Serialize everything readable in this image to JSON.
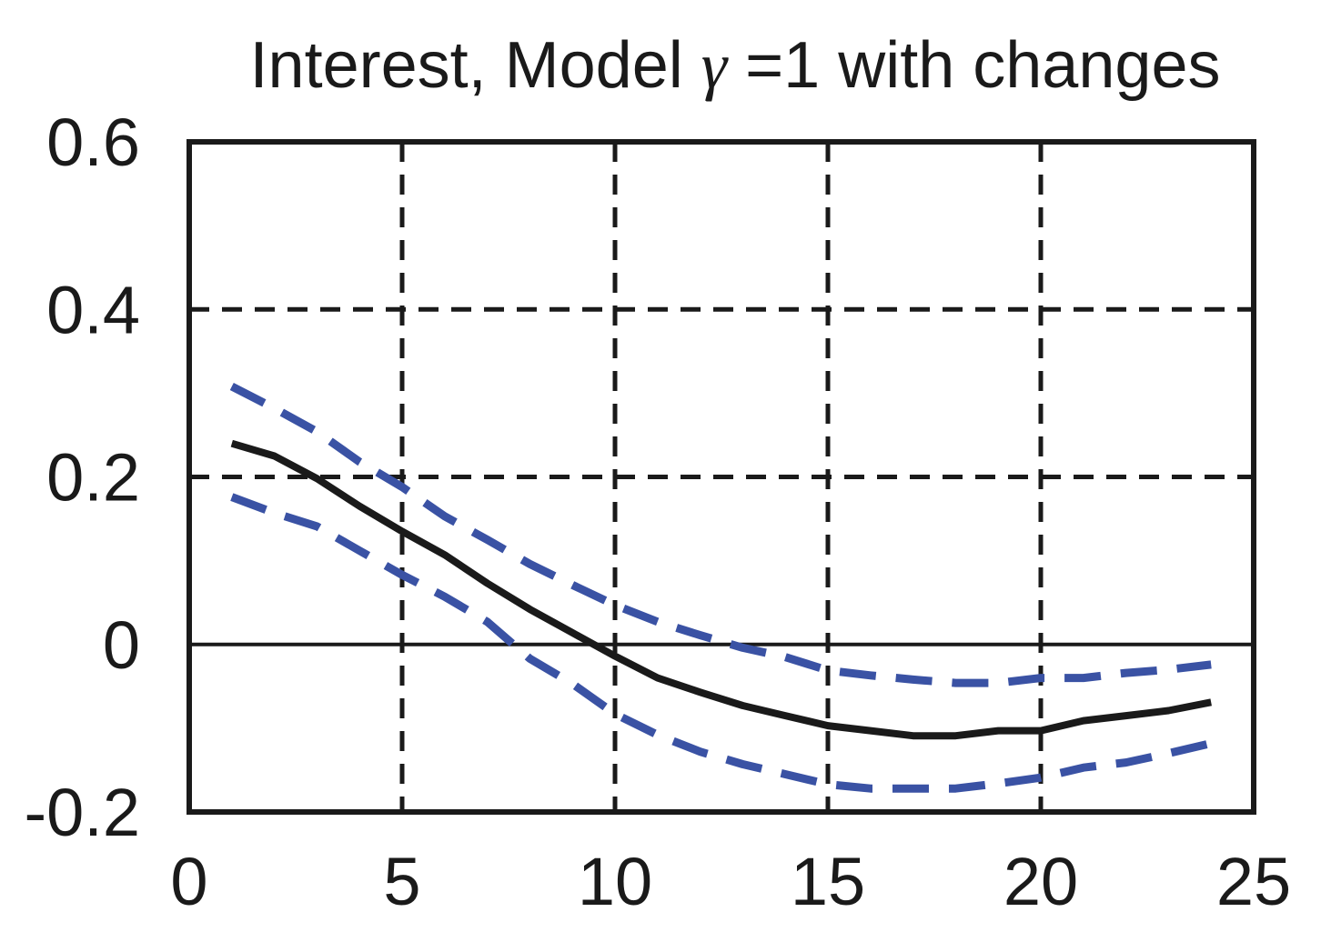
{
  "chart_data": {
    "type": "line",
    "title": {
      "prefix": "Interest, Model ",
      "symbol": "γ",
      "suffix": " =1 with changes"
    },
    "xlabel": "",
    "ylabel": "",
    "xlim": [
      0,
      25
    ],
    "ylim": [
      -0.2,
      0.6
    ],
    "xticks": [
      0,
      5,
      10,
      15,
      20,
      25
    ],
    "xtick_labels": [
      "0",
      "5",
      "10",
      "15",
      "20",
      "25"
    ],
    "yticks": [
      -0.2,
      0,
      0.2,
      0.4,
      0.6
    ],
    "ytick_labels": [
      "-0.2",
      "0",
      "0.2",
      "0.4",
      "0.6"
    ],
    "grid": true,
    "zero_line": true,
    "x": [
      1,
      2,
      3,
      4,
      5,
      6,
      7,
      8,
      9,
      10,
      11,
      12,
      13,
      14,
      15,
      16,
      17,
      18,
      19,
      20,
      21,
      22,
      23,
      24
    ],
    "series": [
      {
        "style": "solid",
        "color": "#1a1a1a",
        "values": [
          0.24,
          0.225,
          0.198,
          0.165,
          0.135,
          0.107,
          0.073,
          0.042,
          0.014,
          -0.014,
          -0.04,
          -0.057,
          -0.073,
          -0.085,
          -0.097,
          -0.103,
          -0.109,
          -0.109,
          -0.103,
          -0.103,
          -0.091,
          -0.085,
          -0.079,
          -0.069
        ]
      },
      {
        "style": "dashed",
        "color": "#3a52a4",
        "values": [
          0.308,
          0.282,
          0.254,
          0.218,
          0.188,
          0.153,
          0.125,
          0.096,
          0.071,
          0.047,
          0.027,
          0.011,
          -0.004,
          -0.015,
          -0.031,
          -0.037,
          -0.042,
          -0.046,
          -0.046,
          -0.04,
          -0.04,
          -0.034,
          -0.03,
          -0.024
        ]
      },
      {
        "style": "dashed",
        "color": "#3a52a4",
        "values": [
          0.176,
          0.157,
          0.141,
          0.112,
          0.083,
          0.057,
          0.027,
          -0.017,
          -0.047,
          -0.083,
          -0.108,
          -0.128,
          -0.143,
          -0.155,
          -0.167,
          -0.172,
          -0.172,
          -0.172,
          -0.166,
          -0.159,
          -0.147,
          -0.141,
          -0.13,
          -0.118
        ]
      }
    ]
  }
}
